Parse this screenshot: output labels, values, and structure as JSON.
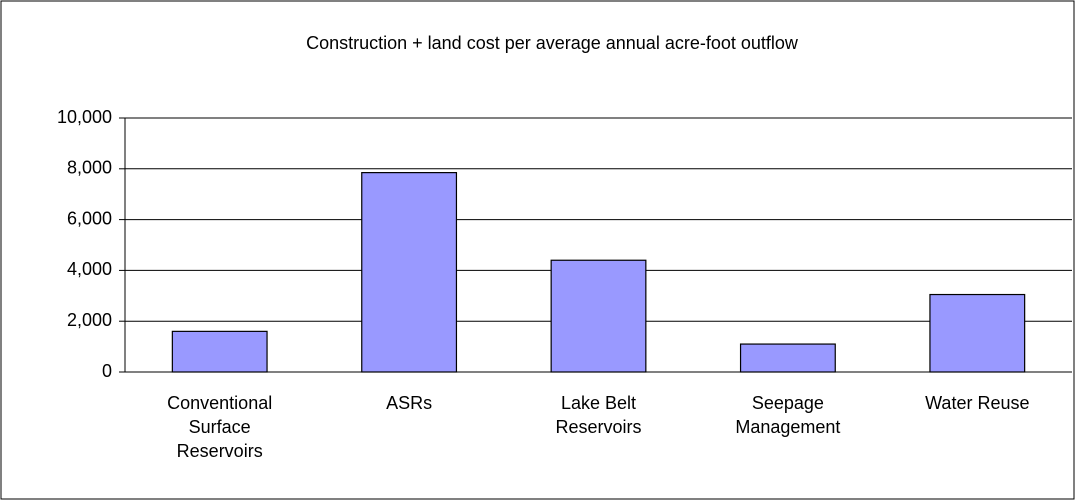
{
  "chart_data": {
    "type": "bar",
    "title": "Construction + land cost per average annual acre-foot outflow",
    "categories": [
      "Conventional Surface Reservoirs",
      "ASRs",
      "Lake Belt Reservoirs",
      "Seepage Management",
      "Water Reuse"
    ],
    "values": [
      1600,
      7850,
      4400,
      1100,
      3050
    ],
    "color": "#9999ff",
    "ylim": [
      0,
      10000
    ],
    "yticks": [
      0,
      {
        "value": 2000,
        "label": "2,000"
      },
      {
        "value": 4000,
        "label": "4,000"
      },
      {
        "value": 6000,
        "label": "6,000"
      },
      {
        "value": 8000,
        "label": "8,000"
      },
      {
        "value": 10000,
        "label": "10,000"
      }
    ],
    "grid": true
  }
}
